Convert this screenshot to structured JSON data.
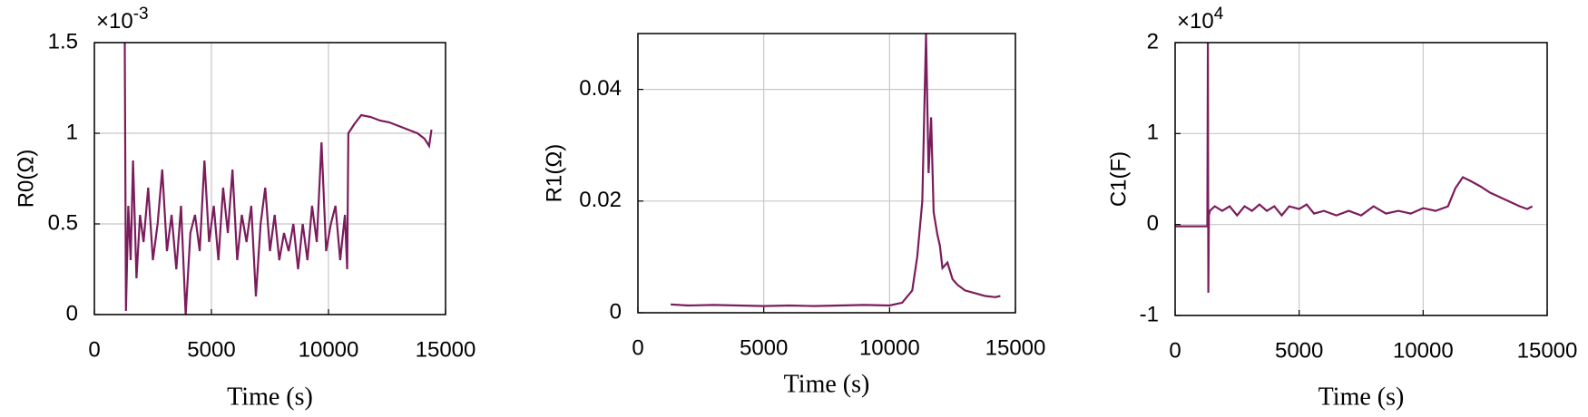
{
  "chart_data": [
    {
      "type": "line",
      "x_label": "Time (s)",
      "y_label": "R0(Ω)",
      "y_multiplier": {
        "base": "×10",
        "exponent": "-3"
      },
      "color": "#7b1c5c",
      "grid": true,
      "xlim": [
        0,
        15000
      ],
      "xticks": [
        0,
        5000,
        10000,
        15000
      ],
      "ylim": [
        0,
        1.5
      ],
      "yticks": [
        0,
        0.5,
        1,
        1.5
      ],
      "x": [
        1300,
        1350,
        1450,
        1550,
        1650,
        1800,
        1950,
        2100,
        2300,
        2500,
        2700,
        2900,
        3100,
        3300,
        3500,
        3700,
        3900,
        4100,
        4300,
        4500,
        4700,
        4900,
        5100,
        5300,
        5500,
        5700,
        5900,
        6100,
        6300,
        6500,
        6700,
        6900,
        7100,
        7300,
        7500,
        7700,
        7900,
        8100,
        8300,
        8500,
        8700,
        8900,
        9100,
        9300,
        9500,
        9700,
        9900,
        10100,
        10300,
        10500,
        10700,
        10800,
        10850,
        11100,
        11400,
        11800,
        12200,
        12600,
        13000,
        13400,
        13800,
        14100,
        14300,
        14400
      ],
      "values": [
        1.5,
        0.02,
        0.6,
        0.3,
        0.85,
        0.2,
        0.55,
        0.4,
        0.7,
        0.3,
        0.5,
        0.8,
        0.35,
        0.55,
        0.25,
        0.6,
        0.0,
        0.45,
        0.55,
        0.35,
        0.85,
        0.4,
        0.6,
        0.3,
        0.7,
        0.45,
        0.8,
        0.3,
        0.55,
        0.4,
        0.6,
        0.1,
        0.5,
        0.7,
        0.35,
        0.55,
        0.3,
        0.45,
        0.35,
        0.5,
        0.25,
        0.5,
        0.3,
        0.6,
        0.4,
        0.95,
        0.35,
        0.5,
        0.6,
        0.3,
        0.55,
        0.25,
        1.0,
        1.05,
        1.1,
        1.09,
        1.07,
        1.06,
        1.04,
        1.02,
        1.0,
        0.97,
        0.93,
        1.02
      ]
    },
    {
      "type": "line",
      "x_label": "Time (s)",
      "y_label": "R1(Ω)",
      "color": "#7b1c5c",
      "grid": true,
      "xlim": [
        0,
        15000
      ],
      "xticks": [
        0,
        5000,
        10000,
        15000
      ],
      "ylim": [
        0,
        0.05
      ],
      "yticks": [
        0,
        0.02,
        0.04
      ],
      "x": [
        1300,
        2000,
        3000,
        4000,
        5000,
        6000,
        7000,
        8000,
        9000,
        10000,
        10500,
        10900,
        11100,
        11300,
        11450,
        11550,
        11650,
        11750,
        11900,
        12000,
        12100,
        12300,
        12500,
        12700,
        13000,
        13400,
        13800,
        14200,
        14400
      ],
      "values": [
        0.0015,
        0.0013,
        0.0014,
        0.0013,
        0.0012,
        0.0013,
        0.0012,
        0.0013,
        0.0014,
        0.0013,
        0.0018,
        0.004,
        0.01,
        0.02,
        0.05,
        0.025,
        0.035,
        0.018,
        0.014,
        0.012,
        0.008,
        0.009,
        0.006,
        0.005,
        0.004,
        0.0035,
        0.003,
        0.0028,
        0.003
      ]
    },
    {
      "type": "line",
      "x_label": "Time (s)",
      "y_label": "C1(F)",
      "y_multiplier": {
        "base": "×10",
        "exponent": "4"
      },
      "color": "#7b1c5c",
      "grid": true,
      "xlim": [
        0,
        15000
      ],
      "xticks": [
        0,
        5000,
        10000,
        15000
      ],
      "ylim": [
        -1,
        2
      ],
      "yticks": [
        -1,
        0,
        1,
        2
      ],
      "x": [
        0,
        1300,
        1320,
        1340,
        1360,
        1400,
        1600,
        1900,
        2200,
        2500,
        2800,
        3100,
        3400,
        3700,
        4000,
        4300,
        4600,
        5000,
        5300,
        5600,
        6000,
        6500,
        7000,
        7500,
        8000,
        8500,
        9000,
        9500,
        10000,
        10500,
        11000,
        11300,
        11600,
        11900,
        12300,
        12700,
        13100,
        13500,
        13900,
        14200,
        14400
      ],
      "values": [
        -0.02,
        -0.02,
        2.0,
        -0.75,
        0.1,
        0.15,
        0.2,
        0.15,
        0.2,
        0.1,
        0.2,
        0.15,
        0.22,
        0.15,
        0.2,
        0.1,
        0.2,
        0.17,
        0.22,
        0.12,
        0.15,
        0.1,
        0.15,
        0.1,
        0.2,
        0.12,
        0.15,
        0.12,
        0.18,
        0.15,
        0.2,
        0.4,
        0.52,
        0.48,
        0.42,
        0.35,
        0.3,
        0.25,
        0.2,
        0.17,
        0.2
      ]
    }
  ]
}
